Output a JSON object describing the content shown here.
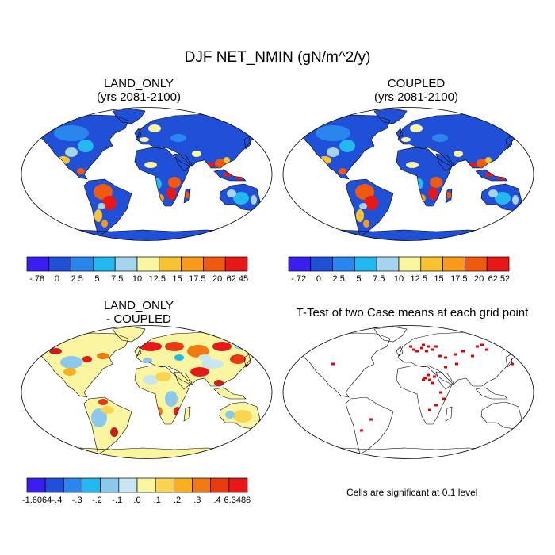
{
  "title": "DJF NET_NMIN (gN/m^2/y)",
  "panels": [
    {
      "title1": "LAND_ONLY",
      "title2": "(yrs 2081-2100)"
    },
    {
      "title1": "COUPLED",
      "title2": "(yrs 2081-2100)"
    },
    {
      "title1": "LAND_ONLY",
      "title2": "- COUPLED"
    },
    {
      "title1": "T-Test of two Case means at each grid point",
      "title2": ""
    }
  ],
  "colorbars": [
    {
      "labels": [
        "-.78",
        "0",
        "2.5",
        "5",
        "7.5",
        "10",
        "12.5",
        "15",
        "17.5",
        "20",
        "62.45"
      ]
    },
    {
      "labels": [
        "-.72",
        "0",
        "2.5",
        "5",
        "7.5",
        "10",
        "12.5",
        "15",
        "17.5",
        "20",
        "62.52"
      ]
    },
    {
      "labels": [
        "-1.6064",
        "-.4",
        "-.3",
        "-.2",
        "-.1",
        ".0",
        ".1",
        ".2",
        ".3",
        ".4",
        "6.3486"
      ]
    }
  ],
  "colors": {
    "abs_scale": [
      "#3a1ef0",
      "#2050d8",
      "#2a86ee",
      "#22b8f0",
      "#a6d4ee",
      "#faf5a0",
      "#f8c330",
      "#f89a1a",
      "#f05a10",
      "#e81818",
      "#c81e1e"
    ],
    "diff_scale": [
      "#3a1ef0",
      "#2050d8",
      "#2a86ee",
      "#22b8f0",
      "#8cc8ec",
      "#c8e6f0",
      "#faf5a0",
      "#f8d450",
      "#f8b020",
      "#f07a12",
      "#e83a10",
      "#e81818",
      "#c81e1e"
    ],
    "significant": "#e80000",
    "coast": "#000000"
  },
  "note": "Cells are significant at 0.1 level"
}
